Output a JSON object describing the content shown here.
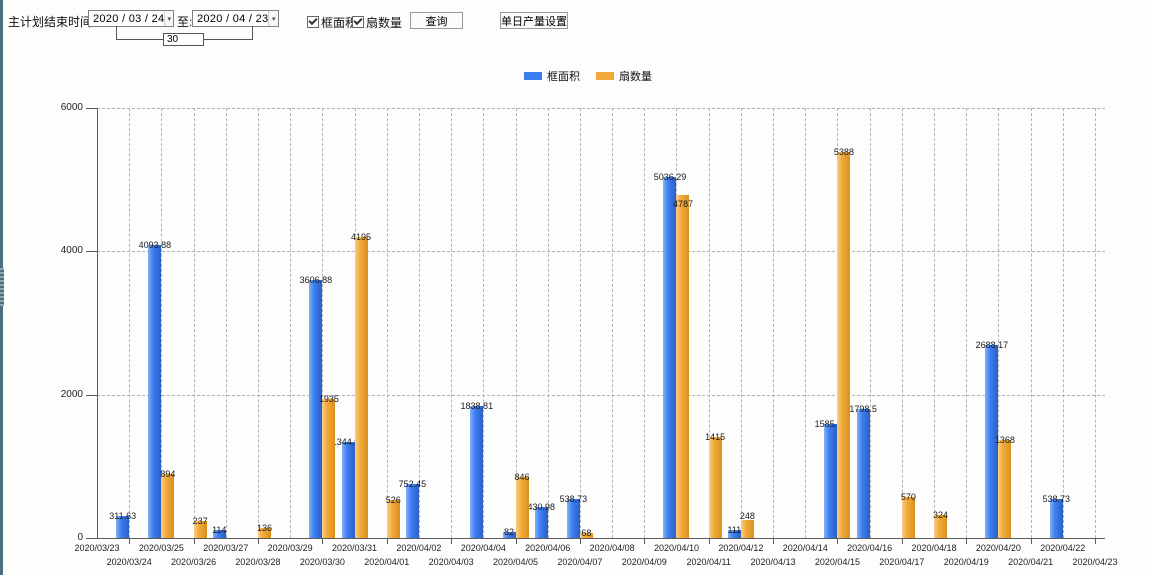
{
  "toolbar": {
    "label_date_range": "主计划结束时间:",
    "date_from": "2020 / 03 / 24",
    "to_label": "至:",
    "date_to": "2020 / 04 / 23",
    "days_value": "30",
    "checkbox_area_label": "框面积",
    "checkbox_area_checked": true,
    "checkbox_fan_label": "扇数量",
    "checkbox_fan_checked": true,
    "query_button": "查询",
    "daily_output_button": "单日产量设置"
  },
  "icons": {
    "dropdown_arrow": "▾"
  },
  "legend": {
    "items": [
      {
        "label": "框面积",
        "color": "#3C7EF0"
      },
      {
        "label": "扇数量",
        "color": "#F2A93B"
      }
    ]
  },
  "chart_data": {
    "type": "bar",
    "title": "",
    "xlabel": "",
    "ylabel": "",
    "ylim": [
      0,
      6000
    ],
    "yticks": [
      0,
      2000,
      4000,
      6000
    ],
    "grid": "dashed",
    "legend_position": "top-center",
    "categories": [
      "2020/03/23",
      "2020/03/24",
      "2020/03/25",
      "2020/03/26",
      "2020/03/27",
      "2020/03/28",
      "2020/03/29",
      "2020/03/30",
      "2020/03/31",
      "2020/04/01",
      "2020/04/02",
      "2020/04/03",
      "2020/04/04",
      "2020/04/05",
      "2020/04/06",
      "2020/04/07",
      "2020/04/08",
      "2020/04/09",
      "2020/04/10",
      "2020/04/11",
      "2020/04/12",
      "2020/04/13",
      "2020/04/14",
      "2020/04/15",
      "2020/04/16",
      "2020/04/17",
      "2020/04/18",
      "2020/04/19",
      "2020/04/20",
      "2020/04/21",
      "2020/04/22",
      "2020/04/23"
    ],
    "series": [
      {
        "name": "框面积",
        "color": "#3C7EF0",
        "color_light": "#85B1F5",
        "color_dark": "#2A5FC6",
        "points": [
          {
            "i": 1,
            "v": 311.63,
            "label": "311.63"
          },
          {
            "i": 2,
            "v": 4093.88,
            "label": "4093.88"
          },
          {
            "i": 4,
            "v": 114,
            "label": "114"
          },
          {
            "i": 7,
            "v": 3606.88,
            "label": "3606.88"
          },
          {
            "i": 8,
            "v": 1344.95,
            "label": "1344.95"
          },
          {
            "i": 10,
            "v": 752.45,
            "label": "752.45"
          },
          {
            "i": 12,
            "v": 1838.81,
            "label": "1838.81"
          },
          {
            "i": 13,
            "v": 82,
            "label": "82"
          },
          {
            "i": 14,
            "v": 430.98,
            "label": "430.98"
          },
          {
            "i": 15,
            "v": 538.73,
            "label": "538.73"
          },
          {
            "i": 18,
            "v": 5036.29,
            "label": "5036.29"
          },
          {
            "i": 20,
            "v": 111,
            "label": "111"
          },
          {
            "i": 23,
            "v": 1585.96,
            "label": "1585.96"
          },
          {
            "i": 24,
            "v": 1798.5,
            "label": "1798.5"
          },
          {
            "i": 28,
            "v": 2688.17,
            "label": "2688.17"
          },
          {
            "i": 30,
            "v": 538.73,
            "label": "538.73"
          }
        ]
      },
      {
        "name": "扇数量",
        "color": "#F2A93B",
        "color_light": "#FBCE85",
        "color_dark": "#D8911C",
        "points": [
          {
            "i": 2,
            "v": 894,
            "label": "894"
          },
          {
            "i": 3,
            "v": 237,
            "label": "237"
          },
          {
            "i": 5,
            "v": 136,
            "label": "136"
          },
          {
            "i": 7,
            "v": 1935,
            "label": "1935"
          },
          {
            "i": 8,
            "v": 4195,
            "label": "4195"
          },
          {
            "i": 9,
            "v": 526,
            "label": "526"
          },
          {
            "i": 13,
            "v": 846,
            "label": "846"
          },
          {
            "i": 15,
            "v": 68,
            "label": "68"
          },
          {
            "i": 18,
            "v": 4787,
            "label": "4787",
            "dy": 9
          },
          {
            "i": 19,
            "v": 1415,
            "label": "1415"
          },
          {
            "i": 20,
            "v": 248,
            "label": "248",
            "dy": -4
          },
          {
            "i": 23,
            "v": 5388,
            "label": "5388"
          },
          {
            "i": 25,
            "v": 570,
            "label": "570"
          },
          {
            "i": 26,
            "v": 324,
            "label": "324"
          },
          {
            "i": 28,
            "v": 1368,
            "label": "1368"
          }
        ]
      }
    ]
  }
}
